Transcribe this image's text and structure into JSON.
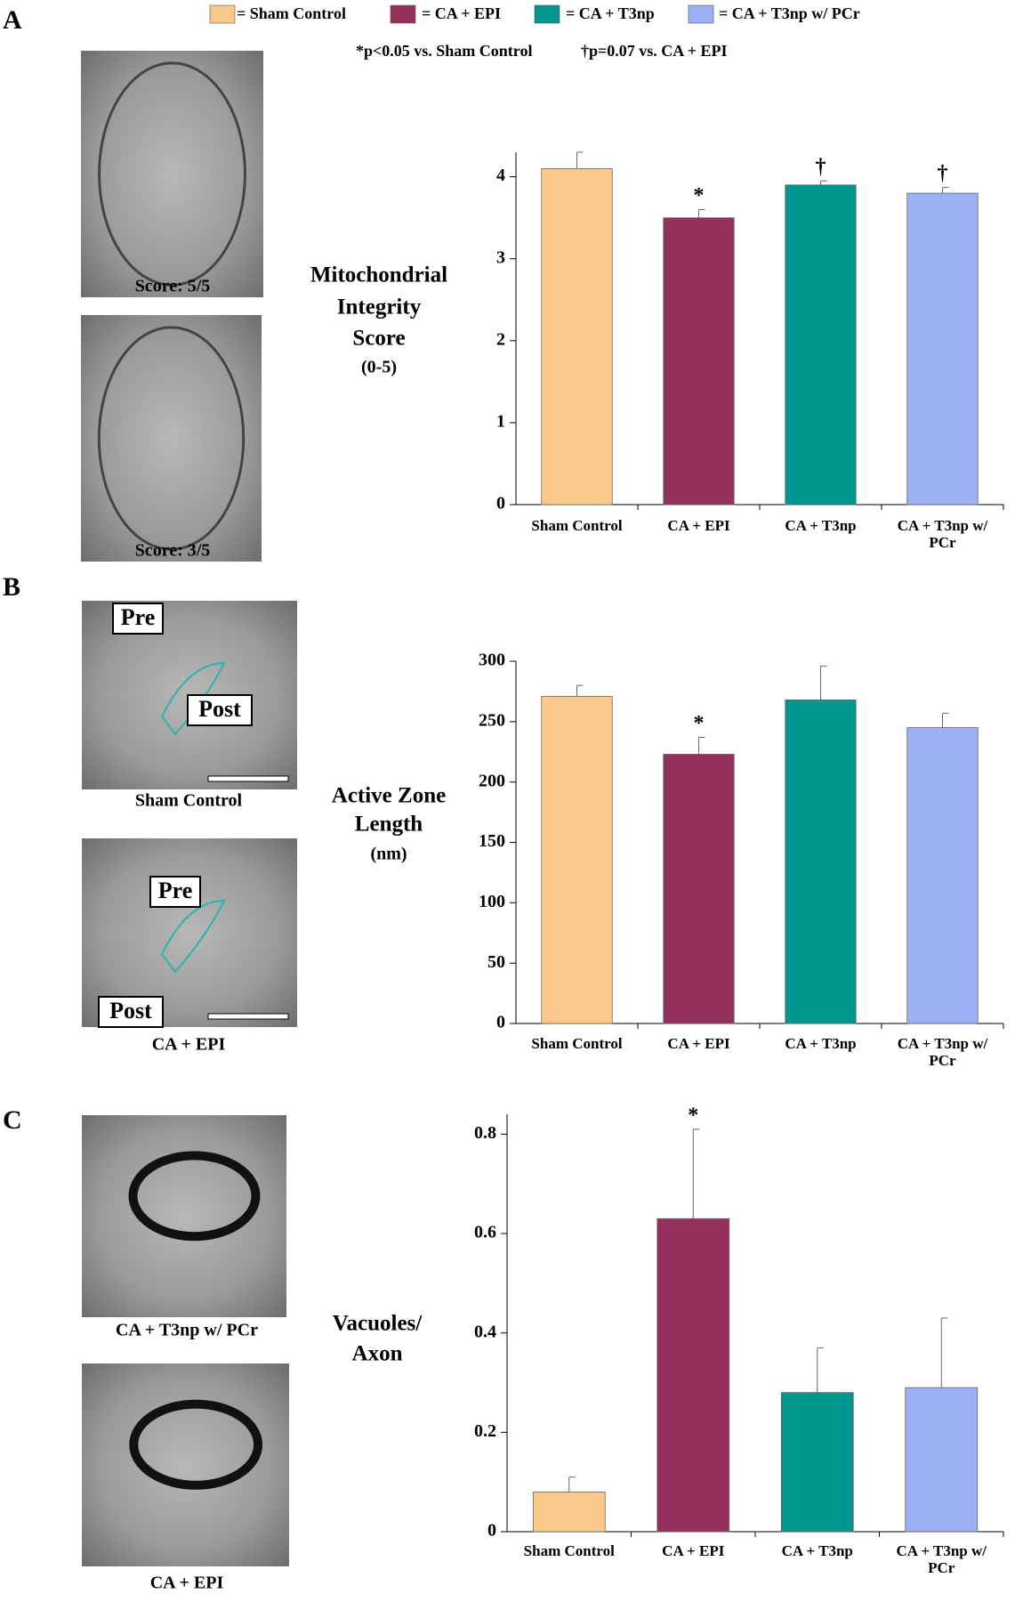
{
  "legend": [
    {
      "label": "= Sham Control",
      "color": "#fbc98a"
    },
    {
      "label": "= CA + EPI",
      "color": "#93305e"
    },
    {
      "label": "= CA + T3np",
      "color": "#009690"
    },
    {
      "label": "= CA + T3np w/ PCr",
      "color": "#9bb0f5"
    }
  ],
  "notes": [
    "*p<0.05 vs. Sham Control",
    "†p=0.07 vs. CA + EPI"
  ],
  "panels": [
    {
      "label": "A",
      "images": [
        {
          "caption": "Score: 5/5"
        },
        {
          "caption": "Score: 3/5"
        }
      ]
    },
    {
      "label": "B",
      "images": [
        {
          "caption": "Sham Control",
          "tags": [
            "Pre",
            "Post"
          ]
        },
        {
          "caption": "CA + EPI",
          "tags": [
            "Pre",
            "Post"
          ]
        }
      ]
    },
    {
      "label": "C",
      "images": [
        {
          "caption": "CA + T3np w/ PCr"
        },
        {
          "caption": "CA + EPI"
        }
      ]
    }
  ],
  "chart_data": [
    {
      "type": "bar",
      "y_label": [
        "Mitochondrial",
        "Integrity",
        "Score",
        "(0-5)"
      ],
      "categories": [
        "Sham Control",
        "CA + EPI",
        "CA + T3np",
        "CA + T3np w/ PCr"
      ],
      "values": [
        4.1,
        3.5,
        3.9,
        3.8
      ],
      "errors": [
        0.2,
        0.1,
        0.05,
        0.07
      ],
      "markers": [
        null,
        "*",
        "†",
        "†"
      ],
      "colors": [
        "#fbc98a",
        "#93305e",
        "#009690",
        "#9bb0f5"
      ],
      "ylim": [
        0,
        4.3
      ],
      "yticks": [
        0,
        1,
        2,
        3,
        4
      ]
    },
    {
      "type": "bar",
      "y_label": [
        "Active Zone",
        "Length",
        "(nm)"
      ],
      "categories": [
        "Sham Control",
        "CA + EPI",
        "CA + T3np",
        "CA + T3np w/ PCr"
      ],
      "values": [
        271,
        223,
        268,
        245
      ],
      "errors": [
        9,
        14,
        28,
        12
      ],
      "markers": [
        null,
        "*",
        null,
        null
      ],
      "colors": [
        "#fbc98a",
        "#93305e",
        "#009690",
        "#9bb0f5"
      ],
      "ylim": [
        0,
        300
      ],
      "yticks": [
        0,
        50,
        100,
        150,
        200,
        250,
        300
      ]
    },
    {
      "type": "bar",
      "y_label": [
        "Vacuoles/",
        "Axon"
      ],
      "categories": [
        "Sham Control",
        "CA + EPI",
        "CA + T3np",
        "CA + T3np w/ PCr"
      ],
      "values": [
        0.08,
        0.63,
        0.28,
        0.29
      ],
      "errors": [
        0.03,
        0.18,
        0.09,
        0.14
      ],
      "markers": [
        null,
        "*",
        null,
        null
      ],
      "colors": [
        "#fbc98a",
        "#93305e",
        "#009690",
        "#9bb0f5"
      ],
      "ylim": [
        0,
        0.84
      ],
      "yticks": [
        0,
        0.2,
        0.4,
        0.6,
        0.8
      ]
    }
  ]
}
